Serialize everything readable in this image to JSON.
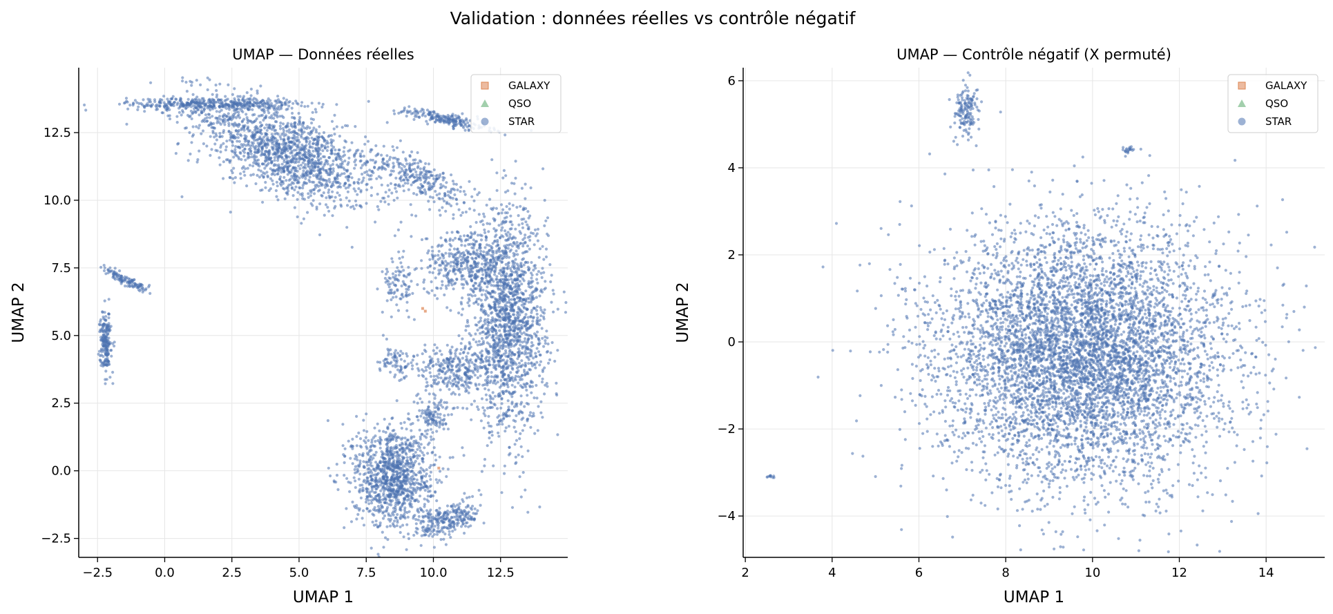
{
  "figure": {
    "suptitle": "Validation : données réelles vs contrôle négatif"
  },
  "colors": {
    "GALAXY": "#dd8452",
    "QSO": "#55a868",
    "STAR": "#4c72b0",
    "grid": "#e6e6e6",
    "axis": "#000000"
  },
  "chart_data": [
    {
      "type": "scatter",
      "title": "UMAP — Données réelles",
      "xlabel": "UMAP 1",
      "ylabel": "UMAP 2",
      "xlim": [
        -3.2,
        15.0
      ],
      "ylim": [
        -3.2,
        14.9
      ],
      "xticks": [
        -2.5,
        0.0,
        2.5,
        5.0,
        7.5,
        10.0,
        12.5
      ],
      "xtick_labels": [
        "−2.5",
        "0.0",
        "2.5",
        "5.0",
        "7.5",
        "10.0",
        "12.5"
      ],
      "yticks": [
        -2.5,
        0.0,
        2.5,
        5.0,
        7.5,
        10.0,
        12.5
      ],
      "ytick_labels": [
        "−2.5",
        "0.0",
        "2.5",
        "5.0",
        "7.5",
        "10.0",
        "12.5"
      ],
      "grid": true,
      "legend_position": "top-right",
      "legend": [
        {
          "label": "GALAXY",
          "marker": "square",
          "color": "#dd8452"
        },
        {
          "label": "QSO",
          "marker": "triangle",
          "color": "#55a868"
        },
        {
          "label": "STAR",
          "marker": "circle",
          "color": "#4c72b0"
        }
      ],
      "series": [
        {
          "name": "STAR",
          "clusters": [
            {
              "x": 4.5,
              "y": 11.8,
              "sx": 1.8,
              "sy": 0.75,
              "angle": -25,
              "n": 1500
            },
            {
              "x": 1.8,
              "y": 13.55,
              "sx": 1.6,
              "sy": 0.12,
              "angle": 0,
              "n": 400
            },
            {
              "x": 9.5,
              "y": 10.8,
              "sx": 1.1,
              "sy": 0.35,
              "angle": -25,
              "n": 300
            },
            {
              "x": 10.4,
              "y": 13.0,
              "sx": 0.9,
              "sy": 0.12,
              "angle": -12,
              "n": 200
            },
            {
              "x": 12.8,
              "y": 5.5,
              "sx": 0.7,
              "sy": 2.0,
              "angle": 0,
              "n": 1600
            },
            {
              "x": 11.2,
              "y": 7.7,
              "sx": 0.8,
              "sy": 0.6,
              "angle": 0,
              "n": 400
            },
            {
              "x": 10.8,
              "y": 3.7,
              "sx": 0.7,
              "sy": 0.5,
              "angle": 0,
              "n": 300
            },
            {
              "x": 8.5,
              "y": -0.2,
              "sx": 0.75,
              "sy": 0.95,
              "angle": 0,
              "n": 1100
            },
            {
              "x": 10.6,
              "y": -1.8,
              "sx": 0.6,
              "sy": 0.3,
              "angle": 20,
              "n": 250
            },
            {
              "x": 10.0,
              "y": 2.0,
              "sx": 0.3,
              "sy": 0.3,
              "angle": 0,
              "n": 100
            },
            {
              "x": 8.7,
              "y": 6.8,
              "sx": 0.3,
              "sy": 0.5,
              "angle": 0,
              "n": 90
            },
            {
              "x": 8.6,
              "y": 4.0,
              "sx": 0.4,
              "sy": 0.3,
              "angle": 0,
              "n": 80
            },
            {
              "x": -2.2,
              "y": 4.8,
              "sx": 0.1,
              "sy": 0.55,
              "angle": 0,
              "n": 200
            },
            {
              "x": -1.4,
              "y": 7.0,
              "sx": 0.5,
              "sy": 0.08,
              "angle": -25,
              "n": 120
            }
          ]
        },
        {
          "name": "GALAXY",
          "points": [
            [
              9.6,
              6.0
            ],
            [
              9.7,
              5.9
            ],
            [
              10.2,
              0.1
            ]
          ]
        },
        {
          "name": "QSO",
          "points": []
        }
      ]
    },
    {
      "type": "scatter",
      "title": "UMAP — Contrôle négatif (X permuté)",
      "xlabel": "UMAP 1",
      "ylabel": "UMAP 2",
      "xlim": [
        1.95,
        15.35
      ],
      "ylim": [
        -4.95,
        6.3
      ],
      "xticks": [
        2,
        4,
        6,
        8,
        10,
        12,
        14
      ],
      "xtick_labels": [
        "2",
        "4",
        "6",
        "8",
        "10",
        "12",
        "14"
      ],
      "yticks": [
        -4,
        -2,
        0,
        2,
        4,
        6
      ],
      "ytick_labels": [
        "−4",
        "−2",
        "0",
        "2",
        "4",
        "6"
      ],
      "grid": true,
      "legend_position": "top-right",
      "legend": [
        {
          "label": "GALAXY",
          "marker": "square",
          "color": "#dd8452"
        },
        {
          "label": "QSO",
          "marker": "triangle",
          "color": "#55a868"
        },
        {
          "label": "STAR",
          "marker": "circle",
          "color": "#4c72b0"
        }
      ],
      "series": [
        {
          "name": "STAR",
          "clusters": [
            {
              "x": 9.8,
              "y": -0.3,
              "sx": 1.65,
              "sy": 1.45,
              "angle": 0,
              "n": 6000
            },
            {
              "x": 7.1,
              "y": 5.3,
              "sx": 0.15,
              "sy": 0.3,
              "angle": 0,
              "n": 150
            },
            {
              "x": 10.8,
              "y": 4.4,
              "sx": 0.05,
              "sy": 0.05,
              "angle": 0,
              "n": 20
            },
            {
              "x": 2.6,
              "y": -3.1,
              "sx": 0.04,
              "sy": 0.04,
              "angle": 0,
              "n": 10
            }
          ]
        },
        {
          "name": "GALAXY",
          "points": []
        },
        {
          "name": "QSO",
          "points": []
        }
      ]
    }
  ]
}
